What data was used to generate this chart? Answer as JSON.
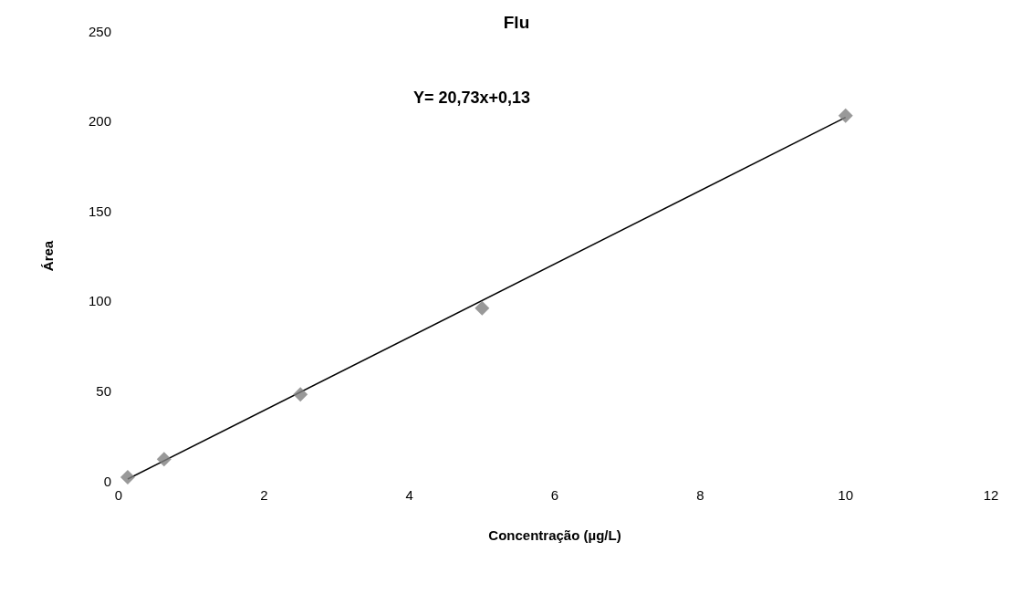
{
  "chart_data": {
    "type": "scatter",
    "title": "Flu",
    "annotations": [
      "Y= 20,73x+0,13"
    ],
    "xlabel": "Concentração (µg/L)",
    "ylabel": "Área",
    "xlim": [
      0,
      12
    ],
    "xticks": [
      0,
      2,
      4,
      6,
      8,
      10,
      12
    ],
    "ylim": [
      0,
      250
    ],
    "yticks": [
      0,
      50,
      100,
      150,
      200,
      250
    ],
    "grid": false,
    "marker": "diamond",
    "series": [
      {
        "color": "#808080",
        "x": [
          0.125,
          0.625,
          2.5,
          5,
          10
        ],
        "values": [
          2,
          12,
          48,
          96,
          203
        ]
      },
      {
        "type": "line",
        "color": "#000000",
        "line_style": "solid",
        "marker": "none",
        "x": [
          0.125,
          10
        ],
        "values": [
          1,
          202
        ]
      }
    ]
  }
}
